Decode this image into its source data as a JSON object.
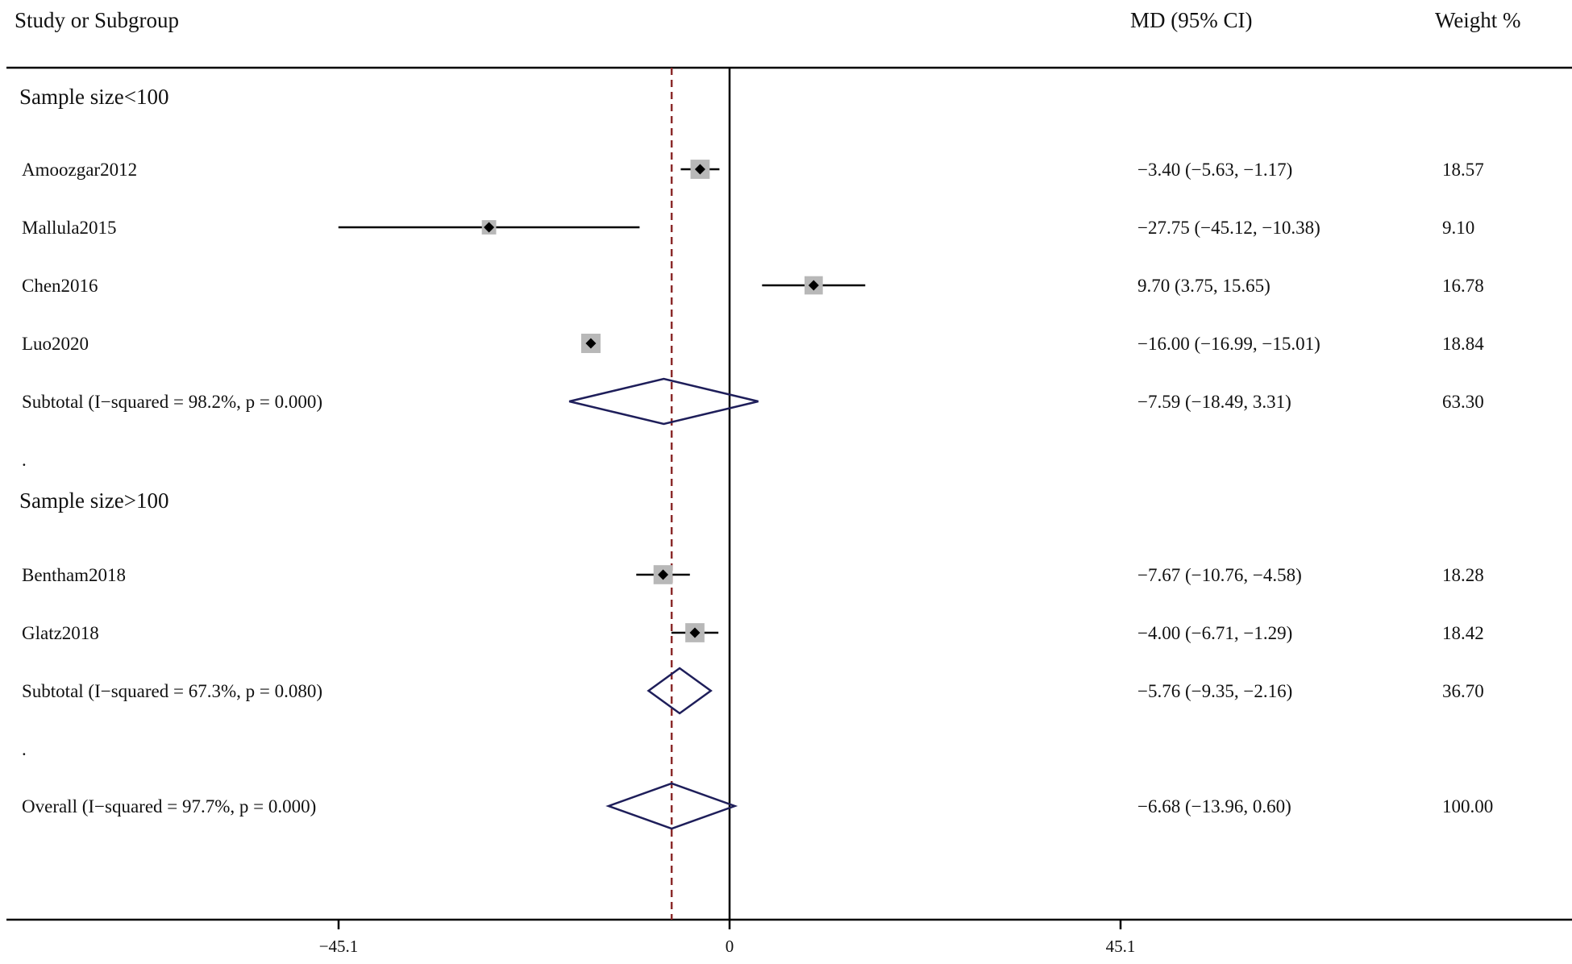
{
  "chart_data": {
    "type": "forest",
    "headers": {
      "study": "Study or Subgroup",
      "effect": "MD (95% CI)",
      "weight": "Weight %"
    },
    "xaxis": {
      "ticks": [
        -45.1,
        0,
        45.1
      ],
      "tick_labels": [
        "−45.1",
        "0",
        "45.1"
      ],
      "range": [
        -84.2,
        97.0
      ]
    },
    "overall_effect_line": -6.68,
    "rows": [
      {
        "kind": "group",
        "label": "Sample size<100"
      },
      {
        "kind": "study",
        "label": "Amoozgar2012",
        "md": -3.4,
        "lo": -5.63,
        "hi": -1.17,
        "ci_text": "−3.40 (−5.63, −1.17)",
        "weight": "18.57"
      },
      {
        "kind": "study",
        "label": "Mallula2015",
        "md": -27.75,
        "lo": -45.12,
        "hi": -10.38,
        "ci_text": "−27.75 (−45.12, −10.38)",
        "weight": "9.10"
      },
      {
        "kind": "study",
        "label": "Chen2016",
        "md": 9.7,
        "lo": 3.75,
        "hi": 15.65,
        "ci_text": "9.70 (3.75, 15.65)",
        "weight": "16.78"
      },
      {
        "kind": "study",
        "label": "Luo2020",
        "md": -16.0,
        "lo": -16.99,
        "hi": -15.01,
        "ci_text": "−16.00 (−16.99, −15.01)",
        "weight": "18.84"
      },
      {
        "kind": "subtotal",
        "label": "Subtotal  (I−squared = 98.2%, p = 0.000)",
        "md": -7.59,
        "lo": -18.49,
        "hi": 3.31,
        "ci_text": "−7.59 (−18.49, 3.31)",
        "weight": "63.30"
      },
      {
        "kind": "dot",
        "label": "."
      },
      {
        "kind": "group",
        "label": "Sample size>100"
      },
      {
        "kind": "study",
        "label": "Bentham2018",
        "md": -7.67,
        "lo": -10.76,
        "hi": -4.58,
        "ci_text": "−7.67 (−10.76, −4.58)",
        "weight": "18.28"
      },
      {
        "kind": "study",
        "label": "Glatz2018",
        "md": -4.0,
        "lo": -6.71,
        "hi": -1.29,
        "ci_text": "−4.00 (−6.71, −1.29)",
        "weight": "18.42"
      },
      {
        "kind": "subtotal",
        "label": "Subtotal  (I−squared = 67.3%, p = 0.080)",
        "md": -5.76,
        "lo": -9.35,
        "hi": -2.16,
        "ci_text": "−5.76 (−9.35, −2.16)",
        "weight": "36.70"
      },
      {
        "kind": "dot",
        "label": "."
      },
      {
        "kind": "overall",
        "label": "Overall  (I−squared = 97.7%, p = 0.000)",
        "md": -6.68,
        "lo": -13.96,
        "hi": 0.6,
        "ci_text": "−6.68 (−13.96, 0.60)",
        "weight": "100.00"
      }
    ],
    "colors": {
      "box": "#b8b8b8",
      "point": "#000000",
      "diamond": "#1e1e5a",
      "ref_line": "#8b2a2a",
      "axis": "#000000"
    }
  }
}
